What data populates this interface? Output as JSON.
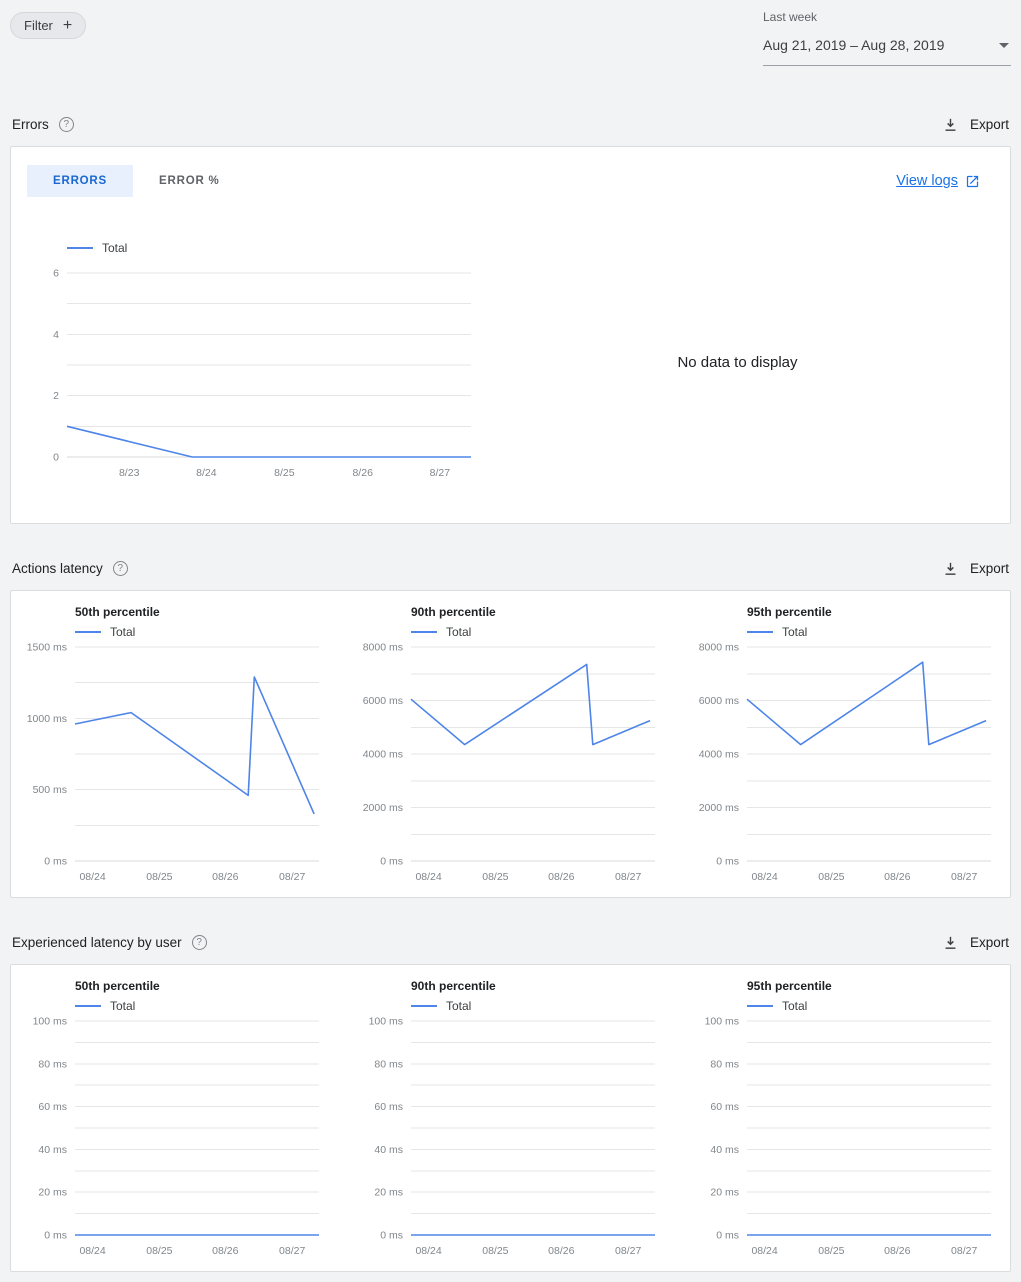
{
  "colors": {
    "line": "#4e85e8",
    "accent": "#1a73e8",
    "page_bg": "#f1f3f4"
  },
  "icons": {
    "help": "?",
    "plus": "+"
  },
  "toolbar": {
    "filter_label": "Filter",
    "range_caption": "Last week",
    "range_value": "Aug 21, 2019 – Aug 28, 2019"
  },
  "errors_section": {
    "title": "Errors",
    "export_label": "Export",
    "tabs": [
      {
        "label": "ERRORS"
      },
      {
        "label": "ERROR %"
      }
    ],
    "view_logs_label": "View logs",
    "no_data_text": "No data to display"
  },
  "actions_section": {
    "title": "Actions latency",
    "export_label": "Export"
  },
  "experienced_section": {
    "title": "Experienced latency by user",
    "export_label": "Export"
  },
  "chart_data": [
    {
      "id": "errors",
      "type": "line",
      "title": "Errors",
      "ylim": [
        0,
        6
      ],
      "y_grid_step": 1,
      "y_ticks": [
        {
          "value": 0,
          "label": "0"
        },
        {
          "value": 2,
          "label": "2"
        },
        {
          "value": 4,
          "label": "4"
        },
        {
          "value": 6,
          "label": "6"
        }
      ],
      "x_ticks": [
        {
          "pos": 0.154,
          "label": "8/23"
        },
        {
          "pos": 0.345,
          "label": "8/24"
        },
        {
          "pos": 0.538,
          "label": "8/25"
        },
        {
          "pos": 0.732,
          "label": "8/26"
        },
        {
          "pos": 0.923,
          "label": "8/27"
        }
      ],
      "series": [
        {
          "name": "Total",
          "points": [
            [
              0,
              1
            ],
            [
              0.31,
              0
            ],
            [
              1,
              0
            ]
          ]
        }
      ]
    },
    {
      "id": "actions-50",
      "type": "line",
      "title": "50th percentile",
      "ylim": [
        0,
        1500
      ],
      "y_grid_step": 250,
      "y_ticks": [
        {
          "value": 0,
          "label": "0 ms"
        },
        {
          "value": 500,
          "label": "500 ms"
        },
        {
          "value": 1000,
          "label": "1000 ms"
        },
        {
          "value": 1500,
          "label": "1500 ms"
        }
      ],
      "x_ticks": [
        {
          "pos": 0.072,
          "label": "08/24"
        },
        {
          "pos": 0.346,
          "label": "08/25"
        },
        {
          "pos": 0.616,
          "label": "08/26"
        },
        {
          "pos": 0.89,
          "label": "08/27"
        }
      ],
      "series": [
        {
          "name": "Total",
          "points": [
            [
              0,
              960
            ],
            [
              0.23,
              1040
            ],
            [
              0.71,
              460
            ],
            [
              0.735,
              1290
            ],
            [
              0.98,
              330
            ]
          ]
        }
      ]
    },
    {
      "id": "actions-90",
      "type": "line",
      "title": "90th percentile",
      "ylim": [
        0,
        8000
      ],
      "y_grid_step": 1000,
      "y_ticks": [
        {
          "value": 0,
          "label": "0 ms"
        },
        {
          "value": 2000,
          "label": "2000 ms"
        },
        {
          "value": 4000,
          "label": "4000 ms"
        },
        {
          "value": 6000,
          "label": "6000 ms"
        },
        {
          "value": 8000,
          "label": "8000 ms"
        }
      ],
      "x_ticks": [
        {
          "pos": 0.072,
          "label": "08/24"
        },
        {
          "pos": 0.346,
          "label": "08/25"
        },
        {
          "pos": 0.616,
          "label": "08/26"
        },
        {
          "pos": 0.89,
          "label": "08/27"
        }
      ],
      "series": [
        {
          "name": "Total",
          "points": [
            [
              0,
              6050
            ],
            [
              0.22,
              4350
            ],
            [
              0.72,
              7350
            ],
            [
              0.745,
              4350
            ],
            [
              0.98,
              5250
            ]
          ]
        }
      ]
    },
    {
      "id": "actions-95",
      "type": "line",
      "title": "95th percentile",
      "ylim": [
        0,
        8000
      ],
      "y_grid_step": 1000,
      "y_ticks": [
        {
          "value": 0,
          "label": "0 ms"
        },
        {
          "value": 2000,
          "label": "2000 ms"
        },
        {
          "value": 4000,
          "label": "4000 ms"
        },
        {
          "value": 6000,
          "label": "6000 ms"
        },
        {
          "value": 8000,
          "label": "8000 ms"
        }
      ],
      "x_ticks": [
        {
          "pos": 0.072,
          "label": "08/24"
        },
        {
          "pos": 0.346,
          "label": "08/25"
        },
        {
          "pos": 0.616,
          "label": "08/26"
        },
        {
          "pos": 0.89,
          "label": "08/27"
        }
      ],
      "series": [
        {
          "name": "Total",
          "points": [
            [
              0,
              6050
            ],
            [
              0.22,
              4350
            ],
            [
              0.72,
              7430
            ],
            [
              0.745,
              4350
            ],
            [
              0.98,
              5250
            ]
          ]
        }
      ]
    },
    {
      "id": "user-50",
      "type": "line",
      "title": "50th percentile",
      "ylim": [
        0,
        100
      ],
      "y_grid_step": 10,
      "y_ticks": [
        {
          "value": 0,
          "label": "0 ms"
        },
        {
          "value": 20,
          "label": "20 ms"
        },
        {
          "value": 40,
          "label": "40 ms"
        },
        {
          "value": 60,
          "label": "60 ms"
        },
        {
          "value": 80,
          "label": "80 ms"
        },
        {
          "value": 100,
          "label": "100 ms"
        }
      ],
      "x_ticks": [
        {
          "pos": 0.072,
          "label": "08/24"
        },
        {
          "pos": 0.346,
          "label": "08/25"
        },
        {
          "pos": 0.616,
          "label": "08/26"
        },
        {
          "pos": 0.89,
          "label": "08/27"
        }
      ],
      "series": [
        {
          "name": "Total",
          "points": [
            [
              0,
              0
            ],
            [
              1,
              0
            ]
          ]
        }
      ]
    },
    {
      "id": "user-90",
      "type": "line",
      "title": "90th percentile",
      "ylim": [
        0,
        100
      ],
      "y_grid_step": 10,
      "y_ticks": [
        {
          "value": 0,
          "label": "0 ms"
        },
        {
          "value": 20,
          "label": "20 ms"
        },
        {
          "value": 40,
          "label": "40 ms"
        },
        {
          "value": 60,
          "label": "60 ms"
        },
        {
          "value": 80,
          "label": "80 ms"
        },
        {
          "value": 100,
          "label": "100 ms"
        }
      ],
      "x_ticks": [
        {
          "pos": 0.072,
          "label": "08/24"
        },
        {
          "pos": 0.346,
          "label": "08/25"
        },
        {
          "pos": 0.616,
          "label": "08/26"
        },
        {
          "pos": 0.89,
          "label": "08/27"
        }
      ],
      "series": [
        {
          "name": "Total",
          "points": [
            [
              0,
              0
            ],
            [
              1,
              0
            ]
          ]
        }
      ]
    },
    {
      "id": "user-95",
      "type": "line",
      "title": "95th percentile",
      "ylim": [
        0,
        100
      ],
      "y_grid_step": 10,
      "y_ticks": [
        {
          "value": 0,
          "label": "0 ms"
        },
        {
          "value": 20,
          "label": "20 ms"
        },
        {
          "value": 40,
          "label": "40 ms"
        },
        {
          "value": 60,
          "label": "60 ms"
        },
        {
          "value": 80,
          "label": "80 ms"
        },
        {
          "value": 100,
          "label": "100 ms"
        }
      ],
      "x_ticks": [
        {
          "pos": 0.072,
          "label": "08/24"
        },
        {
          "pos": 0.346,
          "label": "08/25"
        },
        {
          "pos": 0.616,
          "label": "08/26"
        },
        {
          "pos": 0.89,
          "label": "08/27"
        }
      ],
      "series": [
        {
          "name": "Total",
          "points": [
            [
              0,
              0
            ],
            [
              1,
              0
            ]
          ]
        }
      ]
    }
  ]
}
